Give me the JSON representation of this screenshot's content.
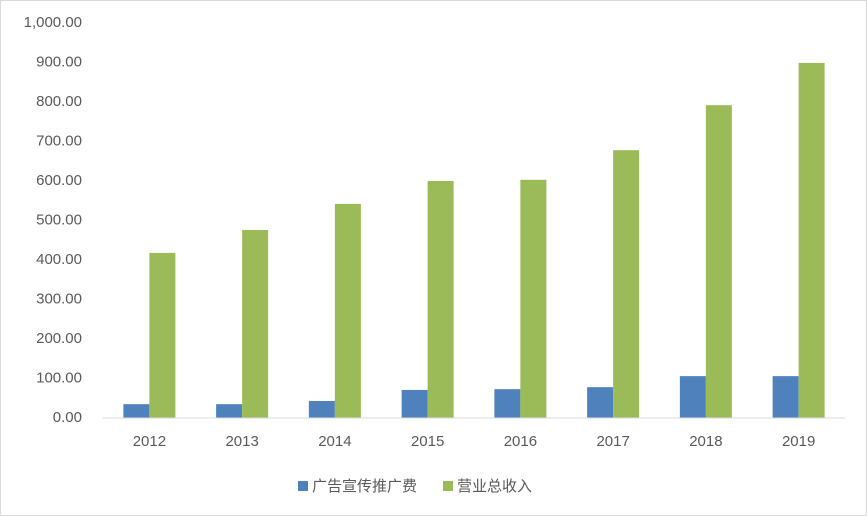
{
  "chart_data": {
    "type": "bar",
    "categories": [
      "2012",
      "2013",
      "2014",
      "2015",
      "2016",
      "2017",
      "2018",
      "2019"
    ],
    "series": [
      {
        "name": "广告宣传推广费",
        "color": "#4f81bd",
        "values": [
          35,
          35,
          43,
          71,
          73,
          78,
          106,
          106
        ]
      },
      {
        "name": "营业总收入",
        "color": "#9bbb59",
        "values": [
          418,
          476,
          542,
          600,
          603,
          678,
          792,
          899
        ]
      }
    ],
    "ylim": [
      0,
      1000
    ],
    "yticks": [
      {
        "value": 0,
        "label": "0.00"
      },
      {
        "value": 100,
        "label": "100.00"
      },
      {
        "value": 200,
        "label": "200.00"
      },
      {
        "value": 300,
        "label": "300.00"
      },
      {
        "value": 400,
        "label": "400.00"
      },
      {
        "value": 500,
        "label": "500.00"
      },
      {
        "value": 600,
        "label": "600.00"
      },
      {
        "value": 700,
        "label": "700.00"
      },
      {
        "value": 800,
        "label": "800.00"
      },
      {
        "value": 900,
        "label": "900.00"
      },
      {
        "value": 1000,
        "label": "1,000.00"
      }
    ],
    "grid": false
  }
}
